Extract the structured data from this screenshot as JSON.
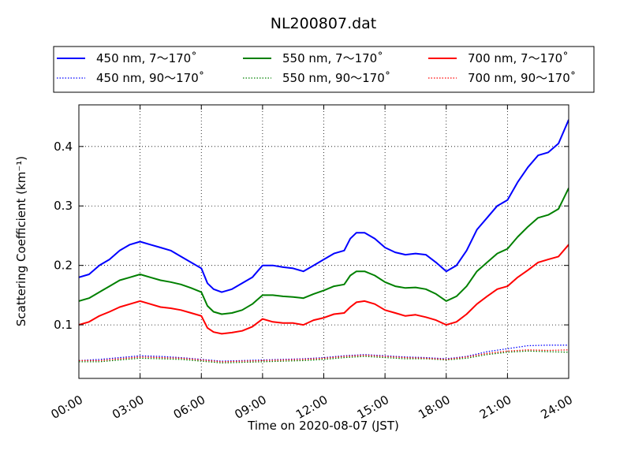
{
  "chart_data": {
    "type": "line",
    "title": "NL200807.dat",
    "xlabel": "Time on 2020-08-07 (JST)",
    "ylabel": "Scattering Coefficient (km⁻¹)",
    "xlim": [
      0,
      24
    ],
    "ylim": [
      0.01,
      0.47
    ],
    "xticks": [
      0,
      3,
      6,
      9,
      12,
      15,
      18,
      21,
      24
    ],
    "xtick_labels": [
      "00:00",
      "03:00",
      "06:00",
      "09:00",
      "12:00",
      "15:00",
      "18:00",
      "21:00",
      "24:00"
    ],
    "yticks": [
      0.1,
      0.2,
      0.3,
      0.4
    ],
    "ytick_labels": [
      "0.1",
      "0.2",
      "0.3",
      "0.4"
    ],
    "grid": true,
    "legend_position": "top (above plot)",
    "series": [
      {
        "name": "450 nm, 7～170˚",
        "color": "#0000ff",
        "style": "solid",
        "x": [
          0,
          0.5,
          1,
          1.5,
          2,
          2.5,
          3,
          3.5,
          4,
          4.5,
          5,
          5.5,
          6,
          6.3,
          6.6,
          7,
          7.5,
          8,
          8.5,
          9,
          9.5,
          10,
          10.5,
          11,
          11.5,
          12,
          12.5,
          13,
          13.3,
          13.6,
          14,
          14.5,
          15,
          15.5,
          16,
          16.5,
          17,
          17.5,
          18,
          18.5,
          19,
          19.5,
          20,
          20.5,
          21,
          21.5,
          22,
          22.5,
          23,
          23.5,
          24
        ],
        "y": [
          0.18,
          0.185,
          0.2,
          0.21,
          0.225,
          0.235,
          0.24,
          0.235,
          0.23,
          0.225,
          0.215,
          0.205,
          0.195,
          0.17,
          0.16,
          0.155,
          0.16,
          0.17,
          0.18,
          0.2,
          0.2,
          0.197,
          0.195,
          0.19,
          0.2,
          0.21,
          0.22,
          0.225,
          0.245,
          0.255,
          0.255,
          0.245,
          0.23,
          0.222,
          0.218,
          0.22,
          0.218,
          0.205,
          0.19,
          0.2,
          0.225,
          0.26,
          0.28,
          0.3,
          0.31,
          0.34,
          0.365,
          0.385,
          0.39,
          0.405,
          0.445
        ]
      },
      {
        "name": "550 nm, 7～170˚",
        "color": "#008000",
        "style": "solid",
        "x": [
          0,
          0.5,
          1,
          1.5,
          2,
          2.5,
          3,
          3.5,
          4,
          4.5,
          5,
          5.5,
          6,
          6.3,
          6.6,
          7,
          7.5,
          8,
          8.5,
          9,
          9.5,
          10,
          10.5,
          11,
          11.5,
          12,
          12.5,
          13,
          13.3,
          13.6,
          14,
          14.5,
          15,
          15.5,
          16,
          16.5,
          17,
          17.5,
          18,
          18.5,
          19,
          19.5,
          20,
          20.5,
          21,
          21.5,
          22,
          22.5,
          23,
          23.5,
          24
        ],
        "y": [
          0.14,
          0.145,
          0.155,
          0.165,
          0.175,
          0.18,
          0.185,
          0.18,
          0.175,
          0.172,
          0.168,
          0.162,
          0.155,
          0.132,
          0.122,
          0.118,
          0.12,
          0.125,
          0.135,
          0.15,
          0.15,
          0.148,
          0.147,
          0.145,
          0.152,
          0.158,
          0.165,
          0.168,
          0.183,
          0.19,
          0.19,
          0.183,
          0.172,
          0.165,
          0.162,
          0.163,
          0.16,
          0.152,
          0.14,
          0.148,
          0.165,
          0.19,
          0.205,
          0.22,
          0.228,
          0.248,
          0.265,
          0.28,
          0.285,
          0.295,
          0.33
        ]
      },
      {
        "name": "700 nm, 7～170˚",
        "color": "#ff0000",
        "style": "solid",
        "x": [
          0,
          0.5,
          1,
          1.5,
          2,
          2.5,
          3,
          3.5,
          4,
          4.5,
          5,
          5.5,
          6,
          6.3,
          6.6,
          7,
          7.5,
          8,
          8.5,
          9,
          9.5,
          10,
          10.5,
          11,
          11.5,
          12,
          12.5,
          13,
          13.3,
          13.6,
          14,
          14.5,
          15,
          15.5,
          16,
          16.5,
          17,
          17.5,
          18,
          18.5,
          19,
          19.5,
          20,
          20.5,
          21,
          21.5,
          22,
          22.5,
          23,
          23.5,
          24
        ],
        "y": [
          0.1,
          0.105,
          0.115,
          0.122,
          0.13,
          0.135,
          0.14,
          0.135,
          0.13,
          0.128,
          0.125,
          0.12,
          0.115,
          0.095,
          0.088,
          0.085,
          0.087,
          0.09,
          0.097,
          0.11,
          0.105,
          0.103,
          0.103,
          0.1,
          0.108,
          0.112,
          0.118,
          0.12,
          0.13,
          0.138,
          0.14,
          0.135,
          0.125,
          0.12,
          0.115,
          0.117,
          0.113,
          0.108,
          0.1,
          0.105,
          0.118,
          0.135,
          0.148,
          0.16,
          0.165,
          0.18,
          0.192,
          0.205,
          0.21,
          0.215,
          0.235
        ]
      },
      {
        "name": "450 nm, 90～170˚",
        "color": "#0000ff",
        "style": "dotted",
        "x": [
          0,
          1,
          2,
          3,
          4,
          5,
          6,
          7,
          8,
          9,
          10,
          11,
          12,
          13,
          14,
          15,
          16,
          17,
          18,
          19,
          20,
          21,
          22,
          23,
          24
        ],
        "y": [
          0.04,
          0.042,
          0.045,
          0.048,
          0.047,
          0.045,
          0.042,
          0.039,
          0.04,
          0.041,
          0.042,
          0.043,
          0.045,
          0.048,
          0.05,
          0.048,
          0.046,
          0.045,
          0.043,
          0.047,
          0.055,
          0.06,
          0.065,
          0.066,
          0.066
        ]
      },
      {
        "name": "550 nm, 90～170˚",
        "color": "#008000",
        "style": "dotted",
        "x": [
          0,
          1,
          2,
          3,
          4,
          5,
          6,
          7,
          8,
          9,
          10,
          11,
          12,
          13,
          14,
          15,
          16,
          17,
          18,
          19,
          20,
          21,
          22,
          23,
          24
        ],
        "y": [
          0.038,
          0.038,
          0.041,
          0.044,
          0.043,
          0.042,
          0.039,
          0.036,
          0.037,
          0.038,
          0.039,
          0.04,
          0.042,
          0.045,
          0.047,
          0.045,
          0.043,
          0.043,
          0.041,
          0.044,
          0.05,
          0.054,
          0.056,
          0.055,
          0.054
        ]
      },
      {
        "name": "700 nm, 90～170˚",
        "color": "#ff0000",
        "style": "dotted",
        "x": [
          0,
          1,
          2,
          3,
          4,
          5,
          6,
          7,
          8,
          9,
          10,
          11,
          12,
          13,
          14,
          15,
          16,
          17,
          18,
          19,
          20,
          21,
          22,
          23,
          24
        ],
        "y": [
          0.04,
          0.04,
          0.043,
          0.046,
          0.045,
          0.044,
          0.041,
          0.038,
          0.039,
          0.04,
          0.041,
          0.042,
          0.044,
          0.047,
          0.049,
          0.047,
          0.045,
          0.044,
          0.042,
          0.046,
          0.052,
          0.056,
          0.058,
          0.057,
          0.058
        ]
      }
    ]
  }
}
